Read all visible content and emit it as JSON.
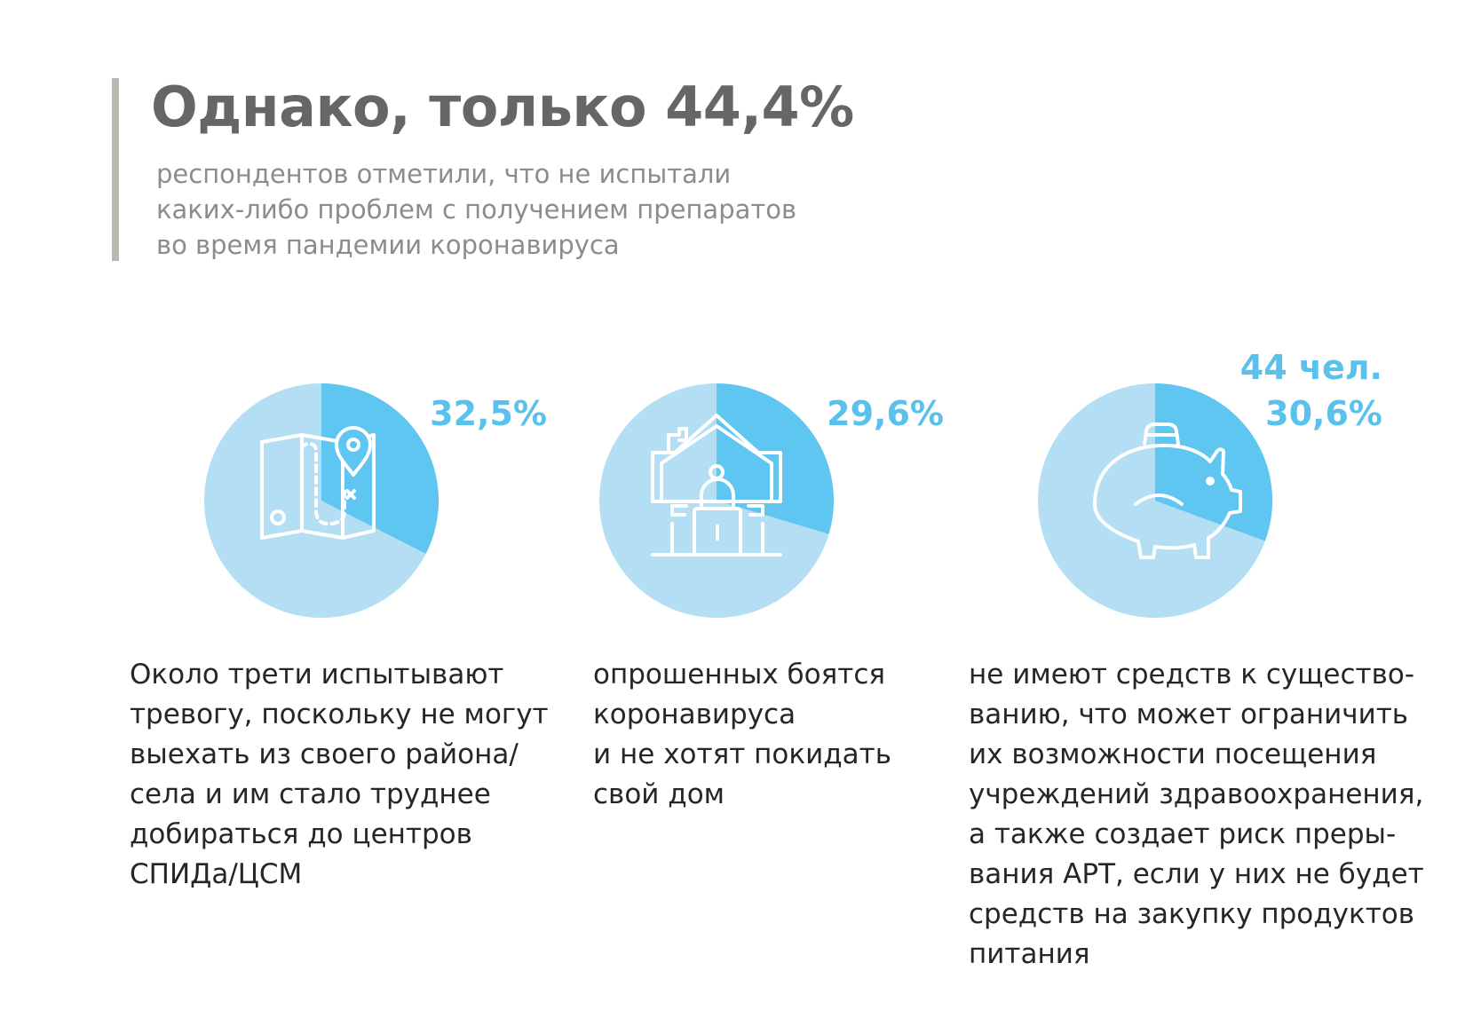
{
  "header": {
    "title": "Однако, только 44,4%",
    "subtitle_lines": [
      "респондентов отметили, что не испытали",
      "каких-либо проблем с получением препаратов",
      "во время пандемии коронавируса"
    ]
  },
  "colors": {
    "pie_highlight": "#5fc5f1",
    "pie_rest": "#b3def4",
    "stat_text": "#5ac0ec",
    "icon_stroke": "#ffffff",
    "accent_bar": "#bdb7b1"
  },
  "chart_data": [
    {
      "type": "pie",
      "icon": "map-icon",
      "slices": [
        {
          "value": 32.5,
          "label": "32,5%"
        },
        {
          "value": 67.5,
          "label": ""
        }
      ],
      "stat_lines": [
        "32,5%"
      ],
      "description_lines": [
        "Около трети испытывают",
        "тревогу, поскольку не могут",
        "выехать из своего района/",
        "села и им стало труднее",
        "добираться до центров",
        "СПИДа/ЦСМ"
      ]
    },
    {
      "type": "pie",
      "icon": "locked-house-icon",
      "slices": [
        {
          "value": 29.6,
          "label": "29,6%"
        },
        {
          "value": 70.4,
          "label": ""
        }
      ],
      "stat_lines": [
        "29,6%"
      ],
      "description_lines": [
        "опрошенных боятся",
        "коронавируса",
        "и не хотят покидать",
        "свой дом"
      ]
    },
    {
      "type": "pie",
      "icon": "piggy-bank-icon",
      "slices": [
        {
          "value": 30.6,
          "label": "30,6%"
        },
        {
          "value": 69.4,
          "label": ""
        }
      ],
      "stat_lines": [
        "44 чел.",
        "30,6%"
      ],
      "description_lines": [
        "не имеют средств к существо-",
        "ванию, что может ограничить",
        "их возможности посещения",
        "учреждений здравоохранения,",
        "а также создает риск преры-",
        "вания АРТ, если у них не будет",
        "средств на закупку продуктов",
        "питания"
      ]
    }
  ]
}
